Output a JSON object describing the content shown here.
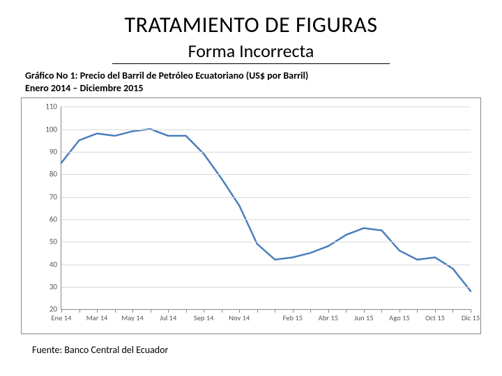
{
  "title": "TRATAMIENTO DE FIGURAS",
  "subtitle": "Forma Incorrecta",
  "caption_line1": "Gráfico No 1: Precio del Barril de Petróleo Ecuatoriano  (US$ por Barril)",
  "caption_line2": "Enero 2014 – Diciembre 2015",
  "source": "Fuente: Banco Central del Ecuador",
  "chart": {
    "type": "line",
    "ylim": [
      20,
      110
    ],
    "ytick_step": 10,
    "yticks": [
      20,
      30,
      40,
      50,
      60,
      70,
      80,
      90,
      100,
      110
    ],
    "x_labels_visible": [
      "Ene 14",
      "Mar 14",
      "May 14",
      "Jul 14",
      "Sep 14",
      "Nov 14",
      "Feb 15",
      "Abr 15",
      "Jun 15",
      "Ago 15",
      "Oct 15",
      "Dic 15"
    ],
    "x_label_indices": [
      0,
      2,
      4,
      6,
      8,
      10,
      13,
      15,
      17,
      19,
      21,
      23
    ],
    "n_points": 24,
    "values": [
      85,
      95,
      98,
      97,
      99,
      100,
      97,
      97,
      89,
      78,
      66,
      49,
      42,
      43,
      45,
      48,
      53,
      56,
      55,
      46,
      42,
      43,
      38,
      28
    ],
    "line_color": "#4a7ebb",
    "line_width": 2.5,
    "grid_color": "#d9d9d9",
    "axis_color": "#888888",
    "background_color": "#ffffff",
    "ylabel_fontsize": 11,
    "xlabel_fontsize": 10.5
  }
}
